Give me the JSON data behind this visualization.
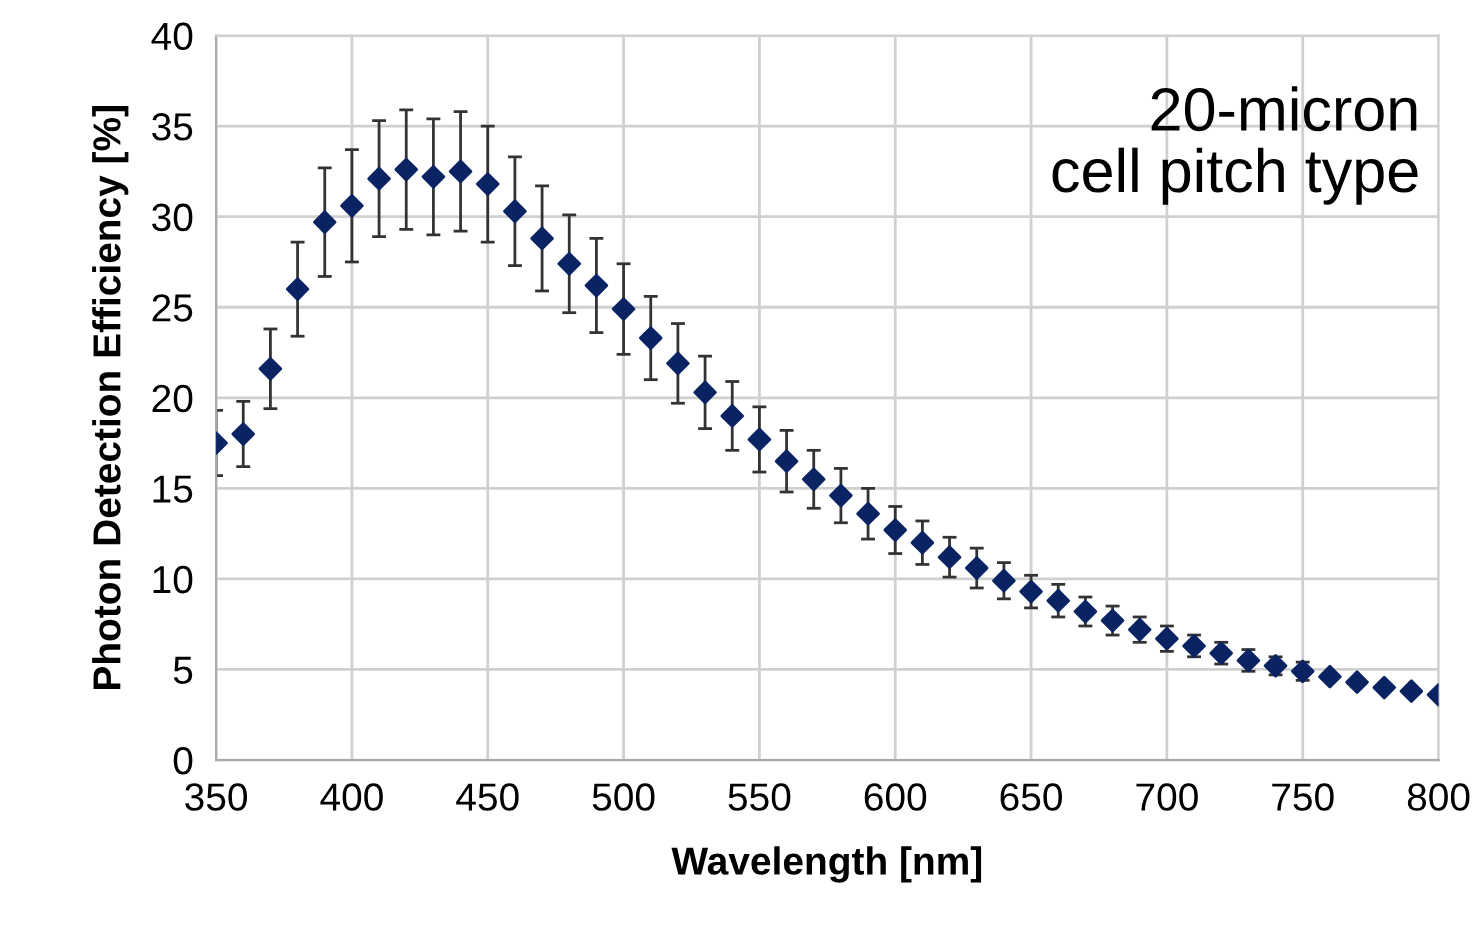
{
  "chart_data": {
    "type": "scatter",
    "xlabel": "Wavelength [nm]",
    "ylabel": "Photon Detection Efficiency [%]",
    "annotations": [
      "20-micron\ncell pitch type"
    ],
    "x": [
      350,
      360,
      370,
      380,
      390,
      400,
      410,
      420,
      430,
      440,
      450,
      460,
      470,
      480,
      490,
      500,
      510,
      520,
      530,
      540,
      550,
      560,
      570,
      580,
      590,
      600,
      610,
      620,
      630,
      640,
      650,
      660,
      670,
      680,
      690,
      700,
      710,
      720,
      730,
      740,
      750,
      760,
      770,
      780,
      790,
      800
    ],
    "series": [
      {
        "color": "#0a2463",
        "values": [
          17.5,
          18.0,
          21.6,
          26.0,
          29.7,
          30.6,
          32.1,
          32.6,
          32.2,
          32.5,
          31.8,
          30.3,
          28.8,
          27.4,
          26.2,
          24.9,
          23.3,
          21.9,
          20.3,
          19.0,
          17.7,
          16.5,
          15.5,
          14.6,
          13.6,
          12.7,
          12.0,
          11.2,
          10.6,
          9.9,
          9.3,
          8.8,
          8.2,
          7.7,
          7.2,
          6.7,
          6.3,
          5.9,
          5.5,
          5.2,
          4.9,
          4.6,
          4.3,
          4.0,
          3.8,
          3.6
        ],
        "errors": [
          1.8,
          1.8,
          2.2,
          2.6,
          3.0,
          3.1,
          3.2,
          3.3,
          3.2,
          3.3,
          3.2,
          3.0,
          2.9,
          2.7,
          2.6,
          2.5,
          2.3,
          2.2,
          2.0,
          1.9,
          1.8,
          1.7,
          1.6,
          1.5,
          1.4,
          1.3,
          1.2,
          1.1,
          1.1,
          1.0,
          0.9,
          0.9,
          0.8,
          0.8,
          0.7,
          0.7,
          0.6,
          0.6,
          0.6,
          0.5,
          0.5,
          null,
          null,
          null,
          null,
          null
        ]
      }
    ],
    "xlim": [
      350,
      800
    ],
    "xticks": [
      350,
      400,
      450,
      500,
      550,
      600,
      650,
      700,
      750,
      800
    ],
    "ylim": [
      0,
      40
    ],
    "yticks": [
      0,
      5,
      10,
      15,
      20,
      25,
      30,
      35,
      40
    ],
    "grid": true,
    "marker": "diamond",
    "legend": false
  }
}
